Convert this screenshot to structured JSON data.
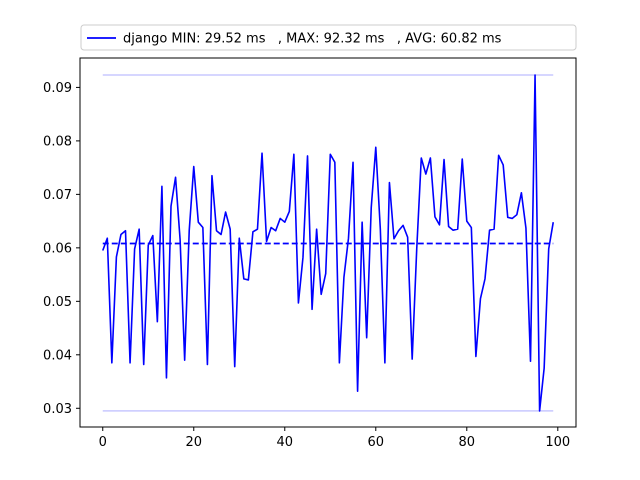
{
  "chart_data": {
    "type": "line",
    "title": "",
    "xlabel": "",
    "ylabel": "",
    "xlim": [
      -5,
      104
    ],
    "ylim": [
      0.0265,
      0.0955
    ],
    "x_ticks": [
      0,
      20,
      40,
      60,
      80,
      100
    ],
    "y_ticks": [
      0.03,
      0.04,
      0.05,
      0.06,
      0.07,
      0.08,
      0.09
    ],
    "y_tick_labels": [
      "0.03",
      "0.04",
      "0.05",
      "0.06",
      "0.07",
      "0.08",
      "0.09"
    ],
    "legend": {
      "position": "top",
      "label": "django MIN: 29.52 ms   , MAX: 92.32 ms   , AVG: 60.82 ms"
    },
    "colors": {
      "series": "#0000ff",
      "reference": "#c8c8ff"
    },
    "reference_lines": [
      {
        "kind": "min",
        "value": 0.02952,
        "style": "solid-light"
      },
      {
        "kind": "max",
        "value": 0.09232,
        "style": "solid-light"
      },
      {
        "kind": "avg",
        "value": 0.06082,
        "style": "dashed"
      }
    ],
    "series": [
      {
        "values": [
          0.0595,
          0.0618,
          0.0385,
          0.0583,
          0.0625,
          0.0632,
          0.0385,
          0.0598,
          0.0635,
          0.0382,
          0.0605,
          0.0623,
          0.0462,
          0.0715,
          0.0357,
          0.0678,
          0.0732,
          0.0615,
          0.039,
          0.0632,
          0.0752,
          0.0648,
          0.0638,
          0.0382,
          0.0735,
          0.0632,
          0.0625,
          0.0667,
          0.0635,
          0.0378,
          0.0618,
          0.0542,
          0.054,
          0.063,
          0.0635,
          0.0777,
          0.0612,
          0.0638,
          0.0632,
          0.0655,
          0.0648,
          0.0668,
          0.0775,
          0.0497,
          0.0582,
          0.0772,
          0.0485,
          0.0635,
          0.0513,
          0.0552,
          0.0775,
          0.076,
          0.0385,
          0.0545,
          0.0618,
          0.076,
          0.0332,
          0.0648,
          0.0432,
          0.0675,
          0.0788,
          0.0635,
          0.0385,
          0.0722,
          0.0617,
          0.0632,
          0.0642,
          0.062,
          0.0392,
          0.0598,
          0.0768,
          0.0738,
          0.0768,
          0.0658,
          0.0643,
          0.0765,
          0.064,
          0.0633,
          0.0635,
          0.0766,
          0.065,
          0.0638,
          0.0397,
          0.0505,
          0.0542,
          0.0633,
          0.0635,
          0.0773,
          0.0755,
          0.0657,
          0.0655,
          0.0662,
          0.0703,
          0.0637,
          0.0388,
          0.0923,
          0.0295,
          0.0375,
          0.0598,
          0.0648
        ]
      }
    ]
  }
}
